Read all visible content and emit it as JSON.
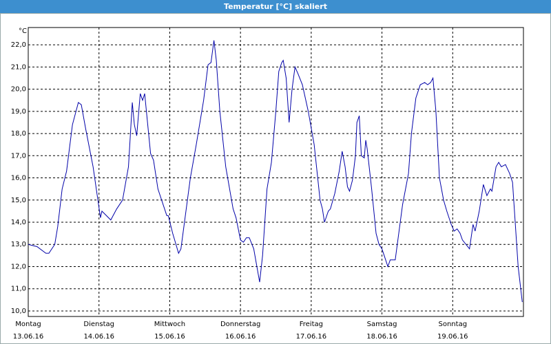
{
  "chart_data": {
    "type": "line",
    "title": "Temperatur [°C] skaliert",
    "y_label": "°C",
    "xlim": [
      0,
      168
    ],
    "ylim": [
      9.75,
      22.78
    ],
    "grid": true,
    "xticks": [
      {
        "value": 0,
        "label": "Montag"
      },
      {
        "value": 24,
        "label": "Dienstag"
      },
      {
        "value": 48,
        "label": "Mittwoch"
      },
      {
        "value": 72,
        "label": "Donnerstag"
      },
      {
        "value": 96,
        "label": "Freitag"
      },
      {
        "value": 120,
        "label": "Samstag"
      },
      {
        "value": 144,
        "label": "Sonntag"
      }
    ],
    "xtick_dates": [
      "13.06.16",
      "14.06.16",
      "15.06.16",
      "16.06.16",
      "17.06.16",
      "18.06.16",
      "19.06.16"
    ],
    "yticks": [
      {
        "value": 10,
        "label": "10,0"
      },
      {
        "value": 11,
        "label": "11,0"
      },
      {
        "value": 12,
        "label": "12,0"
      },
      {
        "value": 13,
        "label": "13,0"
      },
      {
        "value": 14,
        "label": "14,0"
      },
      {
        "value": 15,
        "label": "15,0"
      },
      {
        "value": 16,
        "label": "16,0"
      },
      {
        "value": 17,
        "label": "17,0"
      },
      {
        "value": 18,
        "label": "18,0"
      },
      {
        "value": 19,
        "label": "19,0"
      },
      {
        "value": 20,
        "label": "20,0"
      },
      {
        "value": 21,
        "label": "21,0"
      },
      {
        "value": 22,
        "label": "22,0"
      }
    ],
    "series": [
      {
        "color": "#0000a8",
        "x": [
          0,
          3,
          6,
          7,
          9,
          10,
          11.5,
          13,
          15,
          17,
          18,
          19.5,
          22,
          24.5,
          25,
          28,
          30,
          32,
          34,
          35.3,
          36,
          36.8,
          38,
          38.8,
          39.5,
          41.5,
          42.5,
          44,
          47,
          47.5,
          49,
          51,
          51.8,
          52.5,
          55,
          57,
          59.5,
          61,
          62,
          63,
          63.8,
          65,
          67,
          69.5,
          70.5,
          72,
          73,
          74,
          75,
          76.5,
          78.5,
          79.5,
          81,
          82.5,
          84,
          85,
          86,
          86.5,
          87.5,
          88.5,
          89.5,
          90.5,
          91.5,
          93,
          95,
          97,
          99,
          99.8,
          100.5,
          101.8,
          102.5,
          104,
          105.5,
          106.5,
          107.5,
          108.3,
          109,
          110,
          111,
          111.5,
          112.3,
          113,
          114,
          114.5,
          115,
          116.5,
          118,
          119,
          120,
          121,
          122,
          122.8,
          124.5,
          127,
          129,
          130,
          131.5,
          133,
          134.5,
          135.5,
          136.5,
          137.3,
          138.3,
          139.5,
          140.9,
          142,
          143.5,
          144.5,
          145.5,
          146.5,
          147.3,
          149.7,
          150.9,
          151.6,
          153,
          154.4,
          155.6,
          156.8,
          157.3,
          158.7,
          159.6,
          160.5,
          161.9,
          163.3,
          164.3,
          165.2,
          166.2,
          167.6
        ],
        "values": [
          13.0,
          12.9,
          12.6,
          12.6,
          13.0,
          13.8,
          15.5,
          16.3,
          18.4,
          19.4,
          19.3,
          18.2,
          16.5,
          14.2,
          14.5,
          14.1,
          14.6,
          15.0,
          16.5,
          19.4,
          18.4,
          17.9,
          19.8,
          19.5,
          19.8,
          17.1,
          16.8,
          15.5,
          14.3,
          14.3,
          13.5,
          12.6,
          12.8,
          13.5,
          16.0,
          17.5,
          19.5,
          21.1,
          21.2,
          22.2,
          21.3,
          19.0,
          16.5,
          14.6,
          14.2,
          13.2,
          13.1,
          13.3,
          13.3,
          12.8,
          11.3,
          12.5,
          15.5,
          16.7,
          19.0,
          20.8,
          21.2,
          21.3,
          20.5,
          18.5,
          20.0,
          21.0,
          20.7,
          20.2,
          19.0,
          17.5,
          15.0,
          14.6,
          14.0,
          14.5,
          14.6,
          15.3,
          16.3,
          17.2,
          16.5,
          15.6,
          15.4,
          15.9,
          17.0,
          18.5,
          18.8,
          17.0,
          16.9,
          17.7,
          17.3,
          15.5,
          13.5,
          13.0,
          12.8,
          12.4,
          12.0,
          12.3,
          12.3,
          14.8,
          16.2,
          18.0,
          19.6,
          20.2,
          20.3,
          20.2,
          20.3,
          20.5,
          19.0,
          16.0,
          15.0,
          14.5,
          13.9,
          13.6,
          13.7,
          13.5,
          13.2,
          12.8,
          13.9,
          13.6,
          14.5,
          15.7,
          15.2,
          15.5,
          15.4,
          16.5,
          16.7,
          16.5,
          16.6,
          16.2,
          15.8,
          14.0,
          12.0,
          10.4
        ]
      }
    ]
  }
}
